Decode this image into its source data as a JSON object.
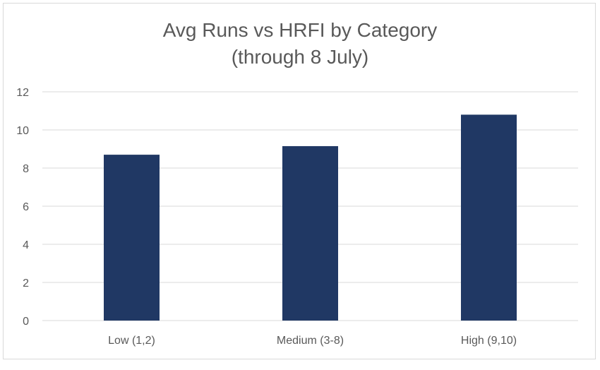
{
  "chart_data": {
    "type": "bar",
    "title": "Avg Runs vs HRFI by Category",
    "subtitle": "(through 8 July)",
    "categories": [
      "Low (1,2)",
      "Medium (3-8)",
      "High (9,10)"
    ],
    "values": [
      8.7,
      9.15,
      10.8
    ],
    "ylim": [
      0,
      12
    ],
    "yticks": [
      0,
      2,
      4,
      6,
      8,
      10,
      12
    ],
    "grid": true,
    "legend": "none",
    "bar_color": "#203864",
    "grid_color": "#d9d9d9"
  }
}
